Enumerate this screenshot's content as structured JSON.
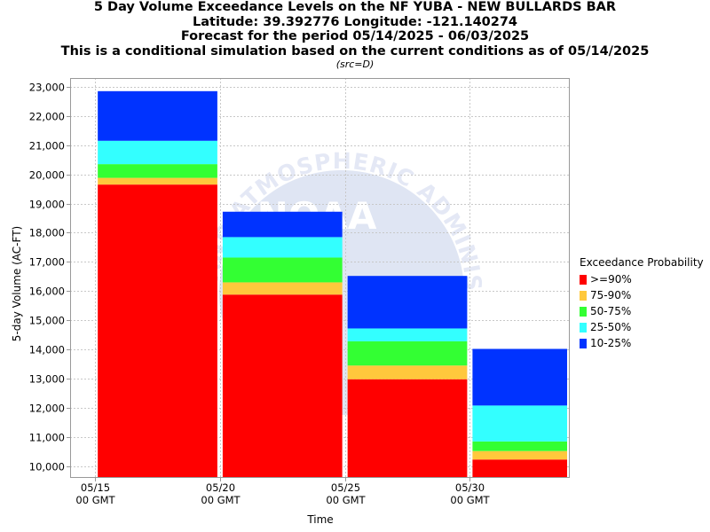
{
  "header": {
    "title": "5 Day Volume Exceedance Levels on the NF YUBA - NEW BULLARDS BAR",
    "location": "Latitude: 39.392776 Longitude: -121.140274",
    "period": "Forecast for the period 05/14/2025 - 06/03/2025",
    "note": "This is a conditional simulation based on the current conditions as of 05/14/2025",
    "source": "(src=D)"
  },
  "watermark": {
    "arc_text": "OCEANIC AND ATMOSPHERIC ADMINISTRATION",
    "logo_text": "NOAA"
  },
  "legend": {
    "title": "Exceedance Probability",
    "items": [
      {
        "label": ">=90%",
        "color": "#ff0000"
      },
      {
        "label": "75-90%",
        "color": "#ffc83c"
      },
      {
        "label": "50-75%",
        "color": "#33ff33"
      },
      {
        "label": "25-50%",
        "color": "#33ffff"
      },
      {
        "label": "10-25%",
        "color": "#0033ff"
      }
    ]
  },
  "chart_data": {
    "type": "bar",
    "stacked": true,
    "xlabel": "Time",
    "ylabel": "5-day Volume (AC-FT)",
    "ylim": [
      9600,
      23300
    ],
    "yticks": [
      10000,
      11000,
      12000,
      13000,
      14000,
      15000,
      16000,
      17000,
      18000,
      19000,
      20000,
      21000,
      22000,
      23000
    ],
    "ytick_labels": [
      "10,000",
      "11,000",
      "12,000",
      "13,000",
      "14,000",
      "15,000",
      "16,000",
      "17,000",
      "18,000",
      "19,000",
      "20,000",
      "21,000",
      "22,000",
      "23,000"
    ],
    "xlim": [
      "05/14/2025",
      "06/03/2025"
    ],
    "xticks": [
      {
        "date": "05/15/2025",
        "label": "05/15",
        "sublabel": "00 GMT"
      },
      {
        "date": "05/20/2025",
        "label": "05/20",
        "sublabel": "00 GMT"
      },
      {
        "date": "05/25/2025",
        "label": "05/25",
        "sublabel": "00 GMT"
      },
      {
        "date": "05/30/2025",
        "label": "05/30",
        "sublabel": "00 GMT"
      }
    ],
    "bars": [
      {
        "start": "05/15/2025",
        "end": "05/20/2025",
        "levels": [
          19650,
          19880,
          20350,
          21150,
          22850
        ]
      },
      {
        "start": "05/20/2025",
        "end": "05/25/2025",
        "levels": [
          15880,
          16300,
          17150,
          17850,
          18720
        ]
      },
      {
        "start": "05/25/2025",
        "end": "05/30/2025",
        "levels": [
          12980,
          13450,
          14280,
          14720,
          16520
        ]
      },
      {
        "start": "05/30/2025",
        "end": "06/03/2025",
        "levels": [
          10230,
          10520,
          10850,
          12080,
          14020
        ]
      }
    ],
    "series": [
      {
        "name": ">=90%",
        "color": "#ff0000"
      },
      {
        "name": "75-90%",
        "color": "#ffc83c"
      },
      {
        "name": "50-75%",
        "color": "#33ff33"
      },
      {
        "name": "25-50%",
        "color": "#33ffff"
      },
      {
        "name": "10-25%",
        "color": "#0033ff"
      }
    ],
    "grid": true,
    "legend_position": "right"
  }
}
